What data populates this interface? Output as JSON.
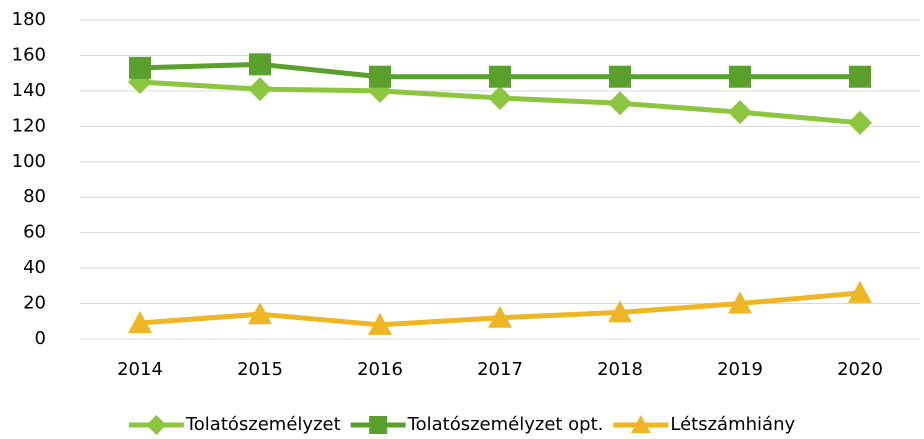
{
  "chart_data": {
    "type": "line",
    "categories": [
      "2014",
      "2015",
      "2016",
      "2017",
      "2018",
      "2019",
      "2020"
    ],
    "series": [
      {
        "name": "Tolatószemélyzet",
        "color": "#8cc63e",
        "marker": "diamond",
        "values": [
          145,
          141,
          140,
          136,
          133,
          128,
          122
        ]
      },
      {
        "name": "Tolatószemélyzet opt.",
        "color": "#5aa02c",
        "marker": "square",
        "values": [
          153,
          155,
          148,
          148,
          148,
          148,
          148
        ]
      },
      {
        "name": "Létszámhiány",
        "color": "#efb623",
        "marker": "triangle",
        "values": [
          9,
          14,
          8,
          12,
          15,
          20,
          26
        ]
      }
    ],
    "ylim": [
      0,
      180
    ],
    "yticks": [
      0,
      20,
      40,
      60,
      80,
      100,
      120,
      140,
      160,
      180
    ],
    "grid": true,
    "legend": "bottom"
  }
}
